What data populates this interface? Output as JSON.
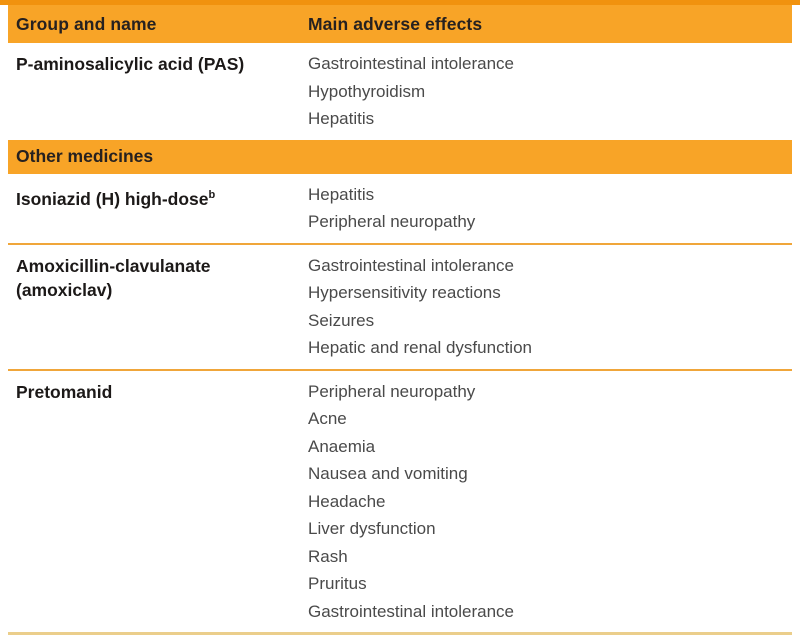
{
  "table": {
    "colors": {
      "top_bar": "#F1920E",
      "header_bg": "#F8A427",
      "row_divider": "#F0A63A",
      "bottom_border": "#EBCE8B"
    },
    "header": {
      "col1": "Group and name",
      "col2": "Main adverse effects"
    },
    "section": {
      "label": "Other medicines"
    },
    "rows": [
      {
        "name": "P-aminosalicylic acid (PAS)",
        "effects": [
          "Gastrointestinal intolerance",
          "Hypothyroidism",
          "Hepatitis"
        ]
      },
      {
        "name": "Isoniazid (H) high-dose",
        "superscript": "b",
        "effects": [
          "Hepatitis",
          "Peripheral neuropathy"
        ]
      },
      {
        "name": "Amoxicillin-clavulanate (amoxiclav)",
        "effects": [
          "Gastrointestinal intolerance",
          "Hypersensitivity reactions",
          "Seizures",
          "Hepatic and renal dysfunction"
        ]
      },
      {
        "name": "Pretomanid",
        "effects": [
          "Peripheral neuropathy",
          "Acne",
          "Anaemia",
          "Nausea and vomiting",
          "Headache",
          "Liver dysfunction",
          "Rash",
          "Pruritus",
          "Gastrointestinal intolerance"
        ]
      }
    ]
  }
}
